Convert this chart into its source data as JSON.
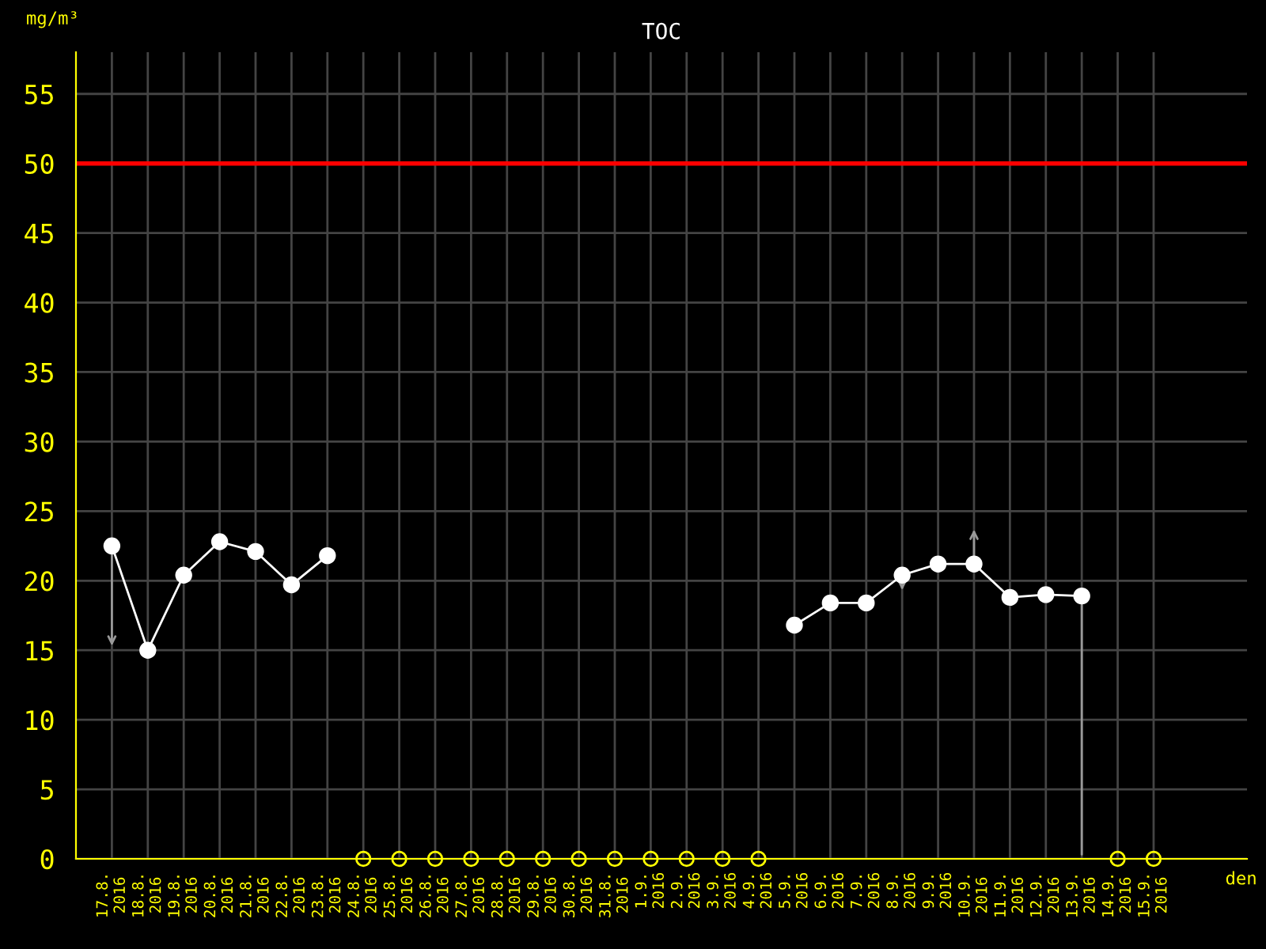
{
  "chart_data": {
    "type": "line",
    "title": "TOC",
    "ylabel": "mg/m³",
    "xlabel": "den",
    "categories": [
      "17.8.\n2016",
      "18.8.\n2016",
      "19.8.\n2016",
      "20.8.\n2016",
      "21.8.\n2016",
      "22.8.\n2016",
      "23.8.\n2016",
      "24.8.\n2016",
      "25.8.\n2016",
      "26.8.\n2016",
      "27.8.\n2016",
      "28.8.\n2016",
      "29.8.\n2016",
      "30.8.\n2016",
      "31.8.\n2016",
      "1.9.\n2016",
      "2.9.\n2016",
      "3.9.\n2016",
      "4.9.\n2016",
      "5.9.\n2016",
      "6.9.\n2016",
      "7.9.\n2016",
      "8.9.\n2016",
      "9.9.\n2016",
      "10.9.\n2016",
      "11.9.\n2016",
      "12.9.\n2016",
      "13.9.\n2016",
      "14.9.\n2016",
      "15.9.\n2016"
    ],
    "series": [
      {
        "type": "line",
        "color": "#ffffff",
        "marker": "circle",
        "values": [
          22.5,
          15.0,
          20.4,
          22.8,
          22.1,
          19.7,
          21.8,
          null,
          null,
          null,
          null,
          null,
          null,
          null,
          null,
          null,
          null,
          null,
          null,
          16.8,
          18.4,
          18.4,
          20.4,
          21.2,
          21.2,
          18.8,
          19.0,
          18.9,
          null,
          null
        ]
      },
      {
        "type": "scatter",
        "color": "#ffff00",
        "marker": "circle",
        "values": [
          null,
          null,
          null,
          null,
          null,
          null,
          null,
          0,
          0,
          0,
          0,
          0,
          0,
          0,
          0,
          0,
          0,
          0,
          0,
          null,
          null,
          null,
          null,
          null,
          null,
          null,
          null,
          null,
          0,
          0
        ]
      }
    ],
    "ylim": [
      0,
      58
    ],
    "yticks": [
      0,
      5,
      10,
      15,
      20,
      25,
      30,
      35,
      40,
      45,
      50,
      55
    ],
    "ref_lines": [
      {
        "axis": "y",
        "value": 50,
        "color": "#ff0000"
      }
    ],
    "grid": true,
    "legend": false
  }
}
